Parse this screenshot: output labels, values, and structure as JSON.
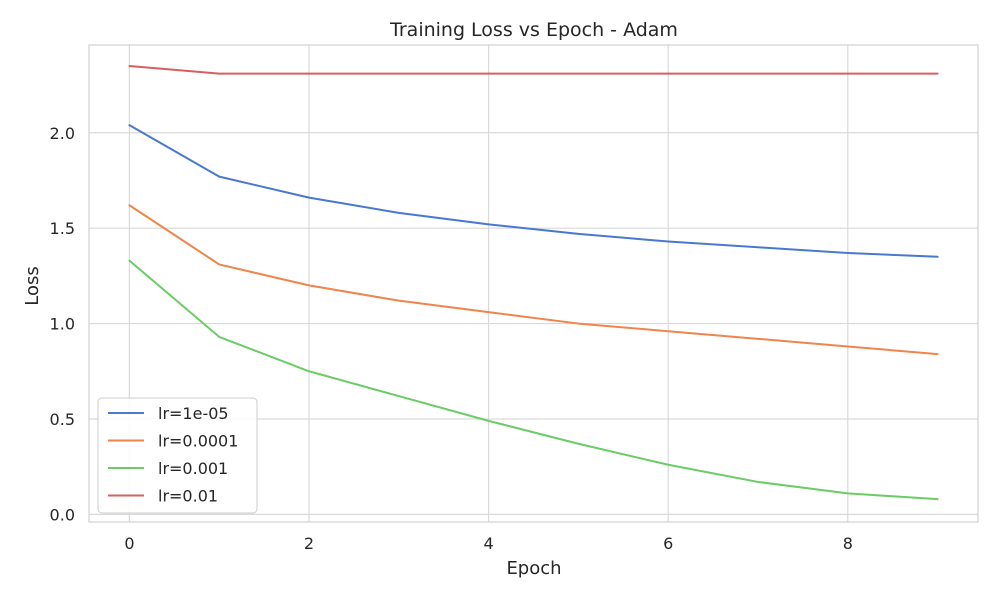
{
  "chart_data": {
    "type": "line",
    "title": "Training Loss vs Epoch - Adam",
    "xlabel": "Epoch",
    "ylabel": "Loss",
    "xlim": [
      -0.45,
      9.45
    ],
    "ylim": [
      -0.04,
      2.46
    ],
    "xticks": [
      0,
      2,
      4,
      6,
      8
    ],
    "xtick_labels": [
      "0",
      "2",
      "4",
      "6",
      "8"
    ],
    "yticks": [
      0.0,
      0.5,
      1.0,
      1.5,
      2.0
    ],
    "ytick_labels": [
      "0.0",
      "0.5",
      "1.0",
      "1.5",
      "2.0"
    ],
    "grid": true,
    "legend_position": "lower-left",
    "x": [
      0,
      1,
      2,
      3,
      4,
      5,
      6,
      7,
      8,
      9
    ],
    "series": [
      {
        "name": "lr=1e-05",
        "color": "#4878d0",
        "values": [
          2.04,
          1.77,
          1.66,
          1.58,
          1.52,
          1.47,
          1.43,
          1.4,
          1.37,
          1.35
        ]
      },
      {
        "name": "lr=0.0001",
        "color": "#ee854a",
        "values": [
          1.62,
          1.31,
          1.2,
          1.12,
          1.06,
          1.0,
          0.96,
          0.92,
          0.88,
          0.84
        ]
      },
      {
        "name": "lr=0.001",
        "color": "#6acc64",
        "values": [
          1.33,
          0.93,
          0.75,
          0.62,
          0.49,
          0.37,
          0.26,
          0.17,
          0.11,
          0.08
        ]
      },
      {
        "name": "lr=0.01",
        "color": "#d65f5f",
        "values": [
          2.35,
          2.31,
          2.31,
          2.31,
          2.31,
          2.31,
          2.31,
          2.31,
          2.31,
          2.31
        ]
      }
    ]
  }
}
